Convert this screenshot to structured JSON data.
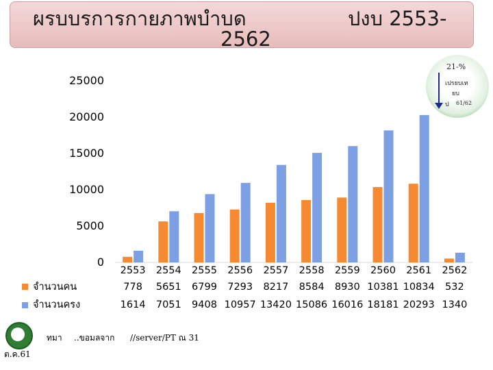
{
  "title": {
    "part1": "ผรบบรการกายภาพบำบด",
    "part2": "ปงบ 2553-",
    "part3": "2562"
  },
  "note": {
    "line1": "21-%",
    "line2": "เปรยบเท",
    "line3": "ยบ",
    "line4": "ป",
    "line5": "61/62"
  },
  "footer": {
    "source_a": "ทมา",
    "source_b": "..ขอมลจาก",
    "source_c": "//server/PT ณ 31",
    "source_d": "ต.ค.61"
  },
  "colors": {
    "series1": "#f58a33",
    "series2": "#7d9fe3"
  },
  "chart_data": {
    "type": "bar",
    "categories": [
      "2553",
      "2554",
      "2555",
      "2556",
      "2557",
      "2558",
      "2559",
      "2560",
      "2561",
      "2562"
    ],
    "series": [
      {
        "name": "จำนวนคน",
        "values": [
          778,
          5651,
          6799,
          7293,
          8217,
          8584,
          8930,
          10381,
          10834,
          532
        ]
      },
      {
        "name": "จำนวนครง",
        "values": [
          1614,
          7051,
          9408,
          10957,
          13420,
          15086,
          16016,
          18181,
          20293,
          1340
        ]
      }
    ],
    "ylim": [
      0,
      25000
    ],
    "yticks": [
      "0",
      "5000",
      "10000",
      "15000",
      "20000",
      "25000"
    ],
    "legend": "bottom-left data table",
    "grid": false
  }
}
